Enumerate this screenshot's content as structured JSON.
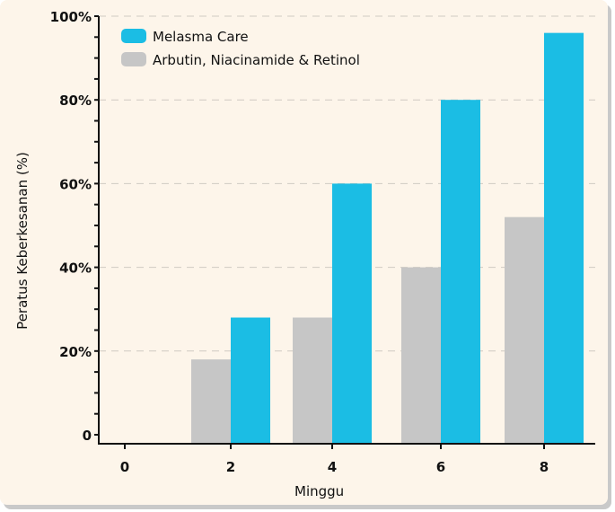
{
  "chart_data": {
    "type": "bar",
    "title": "",
    "xlabel": "Minggu",
    "ylabel": "Peratus Keberkesanan (%)",
    "categories": [
      "0",
      "2",
      "4",
      "6",
      "8"
    ],
    "series": [
      {
        "name": "Arbutin, Niacinamide & Retinol",
        "color": "#c6c6c6",
        "values": [
          0,
          18,
          28,
          40,
          52
        ]
      },
      {
        "name": "Melasma Care",
        "color": "#1bbde4",
        "values": [
          0,
          28,
          60,
          80,
          96
        ]
      }
    ],
    "ylim": [
      0,
      100
    ],
    "yticks": [
      "0",
      "20%",
      "40%",
      "60%",
      "80%",
      "100%"
    ],
    "grid": true,
    "legend_position": "top-left",
    "legend": [
      "Melasma Care",
      "Arbutin, Niacinamide & Retinol"
    ]
  }
}
